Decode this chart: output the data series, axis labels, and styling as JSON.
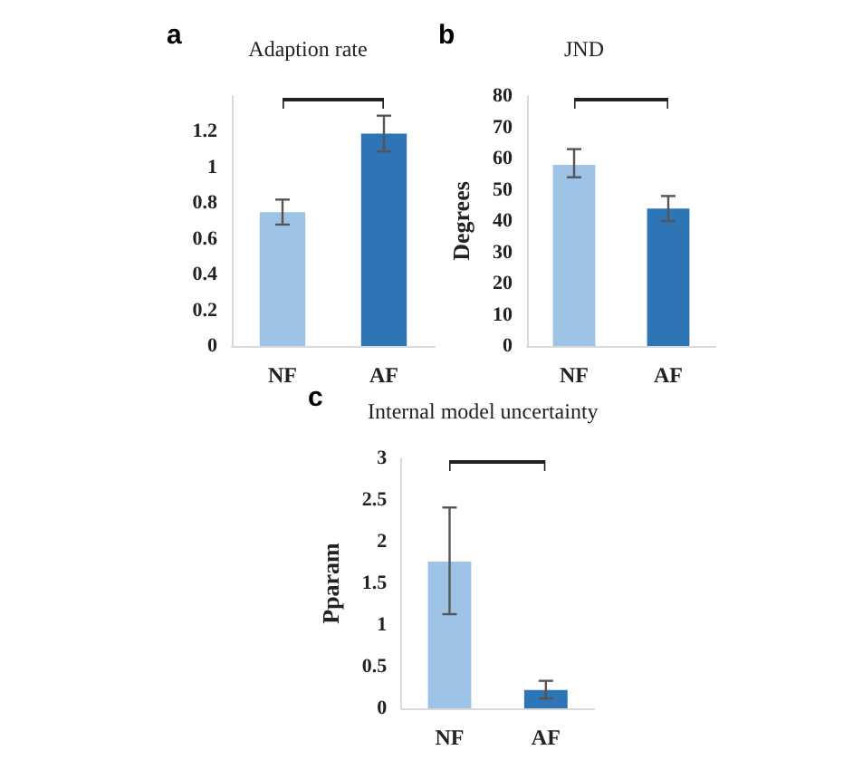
{
  "chart_data": [
    {
      "type": "bar",
      "title": "Adaption rate",
      "annotations": [
        "a"
      ],
      "categories": [
        "NF",
        "AF"
      ],
      "values": [
        0.75,
        1.19
      ],
      "colors": [
        "#9dc3e6",
        "#2e75b6"
      ],
      "errors": [
        [
          0.68,
          0.82
        ],
        [
          1.09,
          1.29
        ]
      ],
      "ylim": [
        0,
        1.4
      ],
      "yticks": [
        0,
        0.2,
        0.4,
        0.6,
        0.8,
        1,
        1.2
      ],
      "grid": false
    },
    {
      "type": "bar",
      "title": "JND",
      "ylabel": "Degrees",
      "annotations": [
        "b"
      ],
      "categories": [
        "NF",
        "AF"
      ],
      "values": [
        58,
        44
      ],
      "colors": [
        "#9dc3e6",
        "#2e75b6"
      ],
      "errors": [
        [
          54,
          63
        ],
        [
          40,
          48
        ]
      ],
      "ylim": [
        0,
        80
      ],
      "yticks": [
        0,
        10,
        20,
        30,
        40,
        50,
        60,
        70,
        80
      ],
      "grid": false
    },
    {
      "type": "bar",
      "title": "Internal model uncertainty",
      "ylabel": "Pparam",
      "annotations": [
        "c"
      ],
      "categories": [
        "NF",
        "AF"
      ],
      "values": [
        1.76,
        0.22
      ],
      "colors": [
        "#9dc3e6",
        "#2e75b6"
      ],
      "errors": [
        [
          1.13,
          2.41
        ],
        [
          0.12,
          0.33
        ]
      ],
      "ylim": [
        0,
        3
      ],
      "yticks": [
        0,
        0.5,
        1,
        1.5,
        2,
        2.5,
        3
      ],
      "grid": false
    }
  ]
}
